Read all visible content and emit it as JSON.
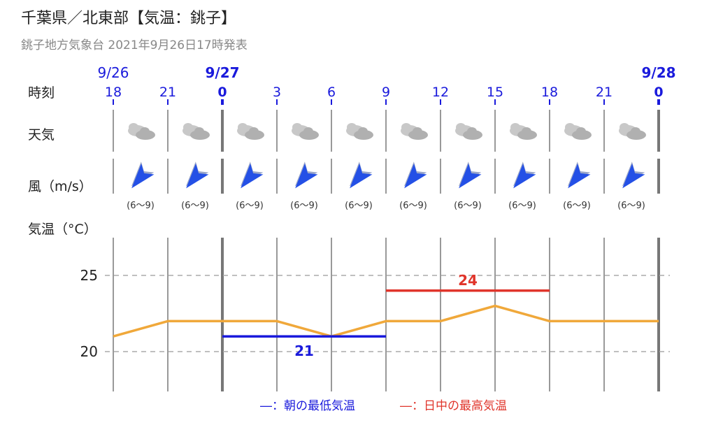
{
  "header": {
    "title": "千葉県／北東部【気温：銚子】",
    "subtitle": "銚子地方気象台 2021年9月26日17時発表"
  },
  "row_labels": {
    "time": "時刻",
    "weather": "天気",
    "wind": "風（m/s）",
    "temp": "気温（°C）"
  },
  "legend": {
    "morning_min": "―：朝の最低気温",
    "daytime_max": "―：日中の最高気温"
  },
  "colors": {
    "temp_line": "#f0a83a",
    "min_line": "#1a1adc",
    "max_line": "#e0352b",
    "day_label": "#1a1adc",
    "wind_arrow": "#2450e6",
    "cloud": "#bbbbbb",
    "grid": "#999999"
  },
  "chart_data": {
    "type": "line",
    "dates": [
      {
        "label": "9/26",
        "col": 0,
        "bold": false
      },
      {
        "label": "9/27",
        "col": 2,
        "bold": true
      },
      {
        "label": "9/28",
        "col": 10,
        "bold": true
      }
    ],
    "hours": [
      "18",
      "21",
      "0",
      "3",
      "6",
      "9",
      "12",
      "15",
      "18",
      "21",
      "0"
    ],
    "bold_hours": [
      2,
      10
    ],
    "weather_icon": "cloudy-icon",
    "weather": [
      "cloudy",
      "cloudy",
      "cloudy",
      "cloudy",
      "cloudy",
      "cloudy",
      "cloudy",
      "cloudy",
      "cloudy",
      "cloudy"
    ],
    "wind": {
      "direction_icon": "wind-direction-arrow-icon",
      "ranges": [
        "(6〜9)",
        "(6〜9)",
        "(6〜9)",
        "(6〜9)",
        "(6〜9)",
        "(6〜9)",
        "(6〜9)",
        "(6〜9)",
        "(6〜9)",
        "(6〜9)"
      ]
    },
    "temperature": [
      21,
      22,
      22,
      22,
      21,
      22,
      22,
      23,
      22,
      22,
      22
    ],
    "morning_min": {
      "value": 21,
      "label": "21",
      "from_col": 2,
      "to_col": 5
    },
    "daytime_max": {
      "value": 24,
      "label": "24",
      "from_col": 5,
      "to_col": 8
    },
    "yticks": [
      "25",
      "20"
    ],
    "ytick_values": [
      25,
      20
    ],
    "ylim": [
      17.5,
      28
    ],
    "grid": "dashed horizontal"
  }
}
